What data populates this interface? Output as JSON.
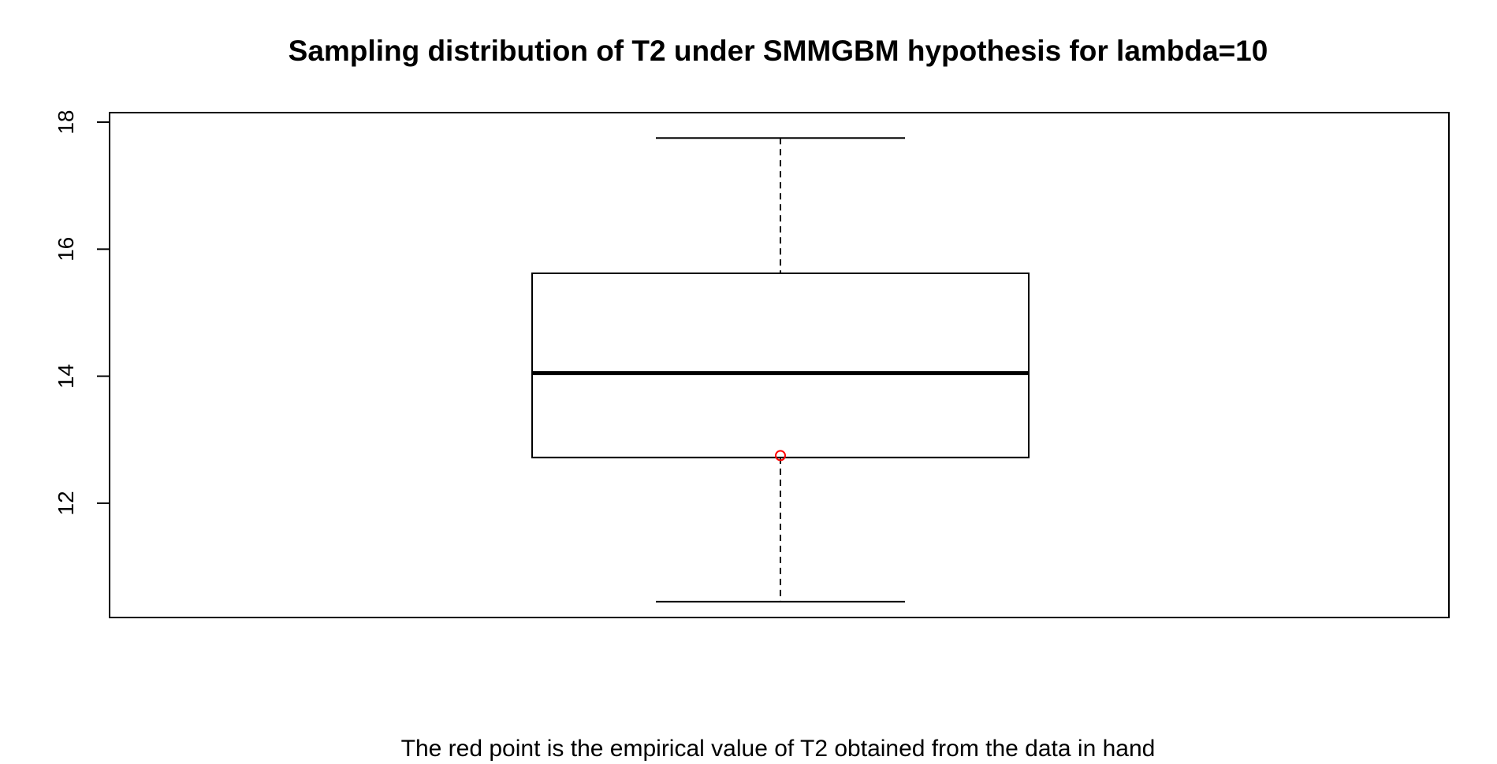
{
  "chart_data": {
    "type": "box",
    "title": "Sampling distribution of T2 under SMMGBM hypothesis for lambda=10",
    "xlabel": "The red point is the empirical value of T2 obtained from the data in hand",
    "ylabel": "",
    "ylim": [
      10.2,
      18.15
    ],
    "yticks": [
      12,
      14,
      16,
      18
    ],
    "box": {
      "whisker_low": 10.45,
      "q1": 12.72,
      "median": 14.05,
      "q3": 15.62,
      "whisker_high": 17.75
    },
    "point": {
      "value": 12.75,
      "color": "#ff0000"
    },
    "colors": {
      "box": "#000000",
      "background": "#ffffff"
    }
  }
}
